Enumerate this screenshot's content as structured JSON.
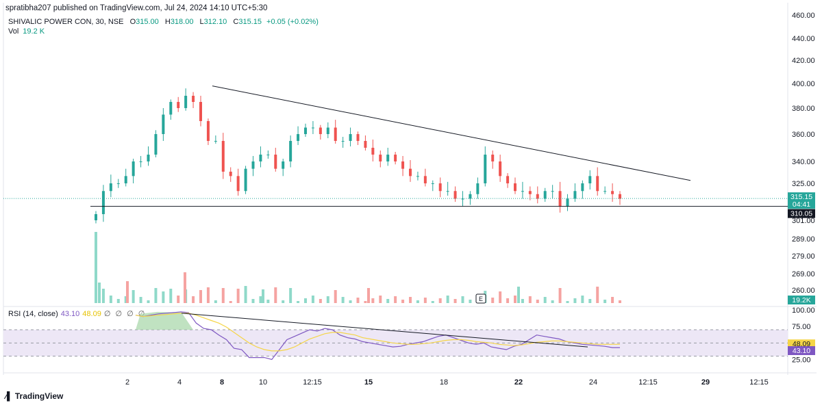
{
  "header": {
    "published_line": "spratibha207 published on TradingView.com, Jul 24, 2024 14:10 UTC+5:30"
  },
  "legend": {
    "symbol": "SHIVALIC POWER CON, 30, NSE",
    "o_label": "O",
    "o_value": "315.00",
    "h_label": "H",
    "h_value": "318.00",
    "l_label": "L",
    "l_value": "312.10",
    "c_label": "C",
    "c_value": "315.15",
    "change": "+0.05 (+0.02%)",
    "vol_label": "Vol",
    "vol_value": "19.2 K"
  },
  "rsi_legend": {
    "label": "RSI (14, close)",
    "rsi_value": "43.10",
    "ma_value": "48.09",
    "placeholders": "∅ ∅ ∅ ∅"
  },
  "footer": {
    "brand": "TradingView"
  },
  "colors": {
    "up": "#26a69a",
    "up_volume": "#8fd9c9",
    "down": "#ef5350",
    "down_volume": "#f5a3a1",
    "rsi": "#7e57c2",
    "rsi_ma": "#f5d547",
    "trendline": "#131722",
    "rsi_band": "#ede7f6"
  },
  "chart_data": [
    {
      "type": "candlestick",
      "title": "SHIVALIC POWER CON, 30, NSE",
      "y_ticks": [
        "460.00",
        "440.00",
        "420.00",
        "400.00",
        "380.00",
        "360.00",
        "340.00",
        "325.00",
        "301.00",
        "289.00",
        "279.00",
        "269.00",
        "260.00"
      ],
      "x_ticks": [
        "2",
        "4",
        "8",
        "10",
        "12:15",
        "15",
        "18",
        "22",
        "24",
        "12:15",
        "29",
        "12:15"
      ],
      "price_labels": {
        "last": "315.15",
        "countdown": "04:41",
        "support": "310.05"
      },
      "volume_label": "19.2K",
      "event_marker": "E",
      "close_series_approx": [
        305,
        320,
        325,
        325,
        330,
        340,
        340,
        345,
        360,
        375,
        385,
        380,
        390,
        385,
        370,
        355,
        355,
        333,
        330,
        320,
        335,
        340,
        345,
        345,
        335,
        340,
        355,
        360,
        365,
        365,
        360,
        365,
        355,
        355,
        360,
        355,
        350,
        345,
        340,
        345,
        340,
        335,
        330,
        330,
        325,
        325,
        320,
        320,
        315,
        315,
        318,
        325,
        345,
        340,
        330,
        325,
        320,
        320,
        318,
        315,
        320,
        320,
        310,
        315,
        320,
        325,
        330,
        320,
        320,
        318,
        315
      ],
      "support_level": 310.05,
      "descending_trendline": {
        "from": [
          "Jul 8",
          398
        ],
        "to": [
          "Jul 26",
          327
        ]
      },
      "ohlc_last": {
        "open": 315.0,
        "high": 318.0,
        "low": 312.1,
        "close": 315.15
      }
    },
    {
      "type": "line",
      "title": "RSI (14, close)",
      "y_ticks": [
        "100.00",
        "75.00",
        "25.00"
      ],
      "value_labels": {
        "rsi": "43.10",
        "ma": "48.09"
      },
      "bands": {
        "upper": 70,
        "middle": 50,
        "lower": 30
      },
      "series": [
        {
          "name": "RSI",
          "values": [
            92,
            90,
            92,
            94,
            95,
            96,
            97,
            96,
            80,
            72,
            70,
            62,
            55,
            42,
            40,
            28,
            28,
            28,
            25,
            40,
            55,
            60,
            65,
            70,
            68,
            72,
            70,
            62,
            58,
            56,
            52,
            50,
            48,
            46,
            44,
            45,
            48,
            50,
            52,
            56,
            60,
            62,
            58,
            54,
            50,
            48,
            50,
            44,
            42,
            40,
            45,
            48,
            55,
            62,
            60,
            58,
            56,
            52,
            50,
            48,
            47,
            46,
            45,
            43,
            43
          ]
        },
        {
          "name": "MA",
          "values": [
            92,
            90,
            91,
            92,
            93,
            94,
            95,
            95,
            92,
            88,
            84,
            80,
            74,
            66,
            58,
            50,
            44,
            40,
            38,
            38,
            40,
            44,
            50,
            56,
            60,
            64,
            66,
            66,
            64,
            62,
            58,
            56,
            54,
            52,
            50,
            49,
            48,
            48,
            49,
            50,
            52,
            54,
            55,
            55,
            54,
            52,
            51,
            50,
            48,
            47,
            46,
            47,
            49,
            51,
            52,
            53,
            53,
            52,
            51,
            50,
            49,
            48,
            48,
            48,
            48
          ]
        }
      ],
      "trendline": {
        "from": [
          "Jul 8",
          95
        ],
        "to": [
          "Jul 23",
          44
        ]
      }
    }
  ]
}
